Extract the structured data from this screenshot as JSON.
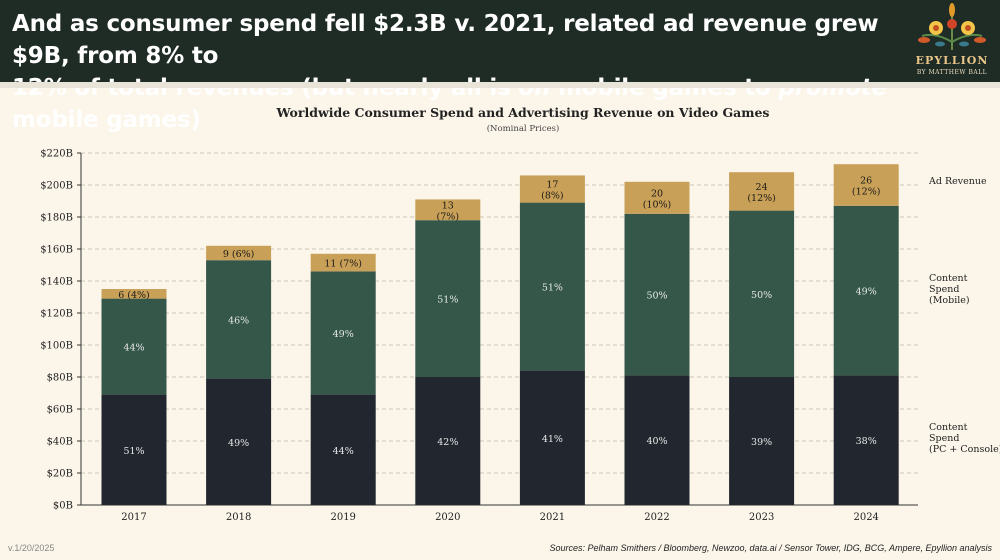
{
  "header": {
    "headline_line1": "And as consumer spend fell $2.3B v. 2021, related ad revenue grew $9B, from 8% to",
    "headline_line2_a": "12% of total revenues (but nearly all is ",
    "headline_line2_on": "on",
    "headline_line2_b": " mobile games to ",
    "headline_line2_promote": "promote",
    "headline_line2_c": " mobile games)"
  },
  "logo": {
    "name": "EPYLLION",
    "byline": "By Matthew Ball"
  },
  "footer": {
    "version": "v.1/20/2025",
    "sources": "Sources: Pelham Smithers / Bloomberg, Newzoo, data.ai / Sensor Tower, IDG, BCG, Ampere, Epyllion analysis"
  },
  "colors": {
    "pc": "#21262f",
    "mobile": "#34574a",
    "ad": "#c9a057",
    "header": "#1f2b25"
  },
  "chart_data": {
    "type": "bar",
    "stacked": true,
    "title": "Worldwide Consumer Spend and Advertising Revenue on Video Games",
    "subtitle": "(Nominal Prices)",
    "xlabel": "",
    "ylabel": "",
    "ylim": [
      0,
      220
    ],
    "yticks": [
      "$0B",
      "$20B",
      "$40B",
      "$60B",
      "$80B",
      "$100B",
      "$120B",
      "$140B",
      "$160B",
      "$180B",
      "$200B",
      "$220B"
    ],
    "grid": true,
    "categories": [
      "2017",
      "2018",
      "2019",
      "2020",
      "2021",
      "2022",
      "2023",
      "2024"
    ],
    "series": [
      {
        "name": "Content Spend (PC + Console)",
        "legend_lines": [
          "Content",
          "Spend",
          "(PC + Console)"
        ],
        "color_key": "pc",
        "values": [
          69,
          79,
          69,
          80,
          84,
          81,
          80,
          81
        ],
        "labels": [
          "51%",
          "49%",
          "44%",
          "42%",
          "41%",
          "40%",
          "39%",
          "38%"
        ]
      },
      {
        "name": "Content Spend (Mobile)",
        "legend_lines": [
          "Content",
          "Spend",
          "(Mobile)"
        ],
        "color_key": "mobile",
        "values": [
          60,
          74,
          77,
          98,
          105,
          101,
          104,
          106
        ],
        "labels": [
          "44%",
          "46%",
          "49%",
          "51%",
          "51%",
          "50%",
          "50%",
          "49%"
        ]
      },
      {
        "name": "Ad Revenue",
        "legend_lines": [
          "Ad Revenue"
        ],
        "color_key": "ad",
        "values": [
          6,
          9,
          11,
          13,
          17,
          20,
          24,
          26
        ],
        "labels": [
          [
            "6 (4%)"
          ],
          [
            "9 (6%)"
          ],
          [
            "11 (7%)"
          ],
          [
            "13",
            "(7%)"
          ],
          [
            "17",
            "(8%)"
          ],
          [
            "20",
            "(10%)"
          ],
          [
            "24",
            "(12%)"
          ],
          [
            "26",
            "(12%)"
          ]
        ]
      }
    ],
    "legend_placement": "right"
  }
}
